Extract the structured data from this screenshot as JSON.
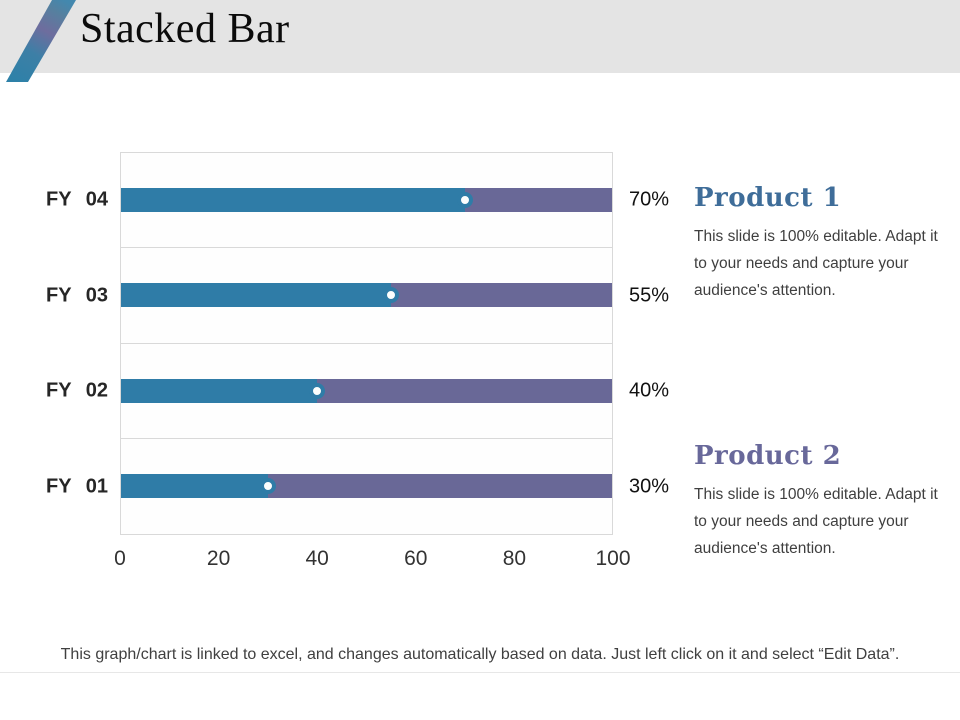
{
  "header": {
    "title": "Stacked Bar"
  },
  "chart_data": {
    "type": "bar",
    "orientation": "horizontal",
    "stacked": true,
    "categories": [
      "FY 04",
      "FY 03",
      "FY 02",
      "FY 01"
    ],
    "series": [
      {
        "name": "Product 1",
        "color": "#2f7ca7",
        "values": [
          70,
          55,
          40,
          30
        ]
      },
      {
        "name": "Product 2",
        "color": "#696897",
        "values": [
          30,
          45,
          60,
          70
        ]
      }
    ],
    "data_labels": [
      "70%",
      "55%",
      "40%",
      "30%"
    ],
    "xticks": [
      "0",
      "20",
      "40",
      "60",
      "80",
      "100"
    ],
    "xlim": [
      0,
      100
    ],
    "grid": "horizontal category separator lines only",
    "legend_position": "none",
    "marker": "white circle with teal ring at segment boundary",
    "title": "Stacked Bar",
    "xlabel": "",
    "ylabel": ""
  },
  "products": [
    {
      "heading": "Product 1",
      "heading_color": "#3f6d99",
      "body": "This slide is 100% editable. Adapt it to your needs and capture your audience's attention."
    },
    {
      "heading": "Product 2",
      "heading_color": "#68689a",
      "body": "This slide is 100% editable. Adapt it to your needs and capture your audience's attention."
    }
  ],
  "footer": {
    "note": "This graph/chart is linked to excel, and changes automatically based on data. Just left click on it and select “Edit Data”."
  },
  "colors": {
    "header_background": "#e4e4e4",
    "accent_teal": "#2f7ca7",
    "accent_purple": "#696897",
    "grid_line": "#d9d9d9",
    "body_text": "#3f3f3f"
  }
}
